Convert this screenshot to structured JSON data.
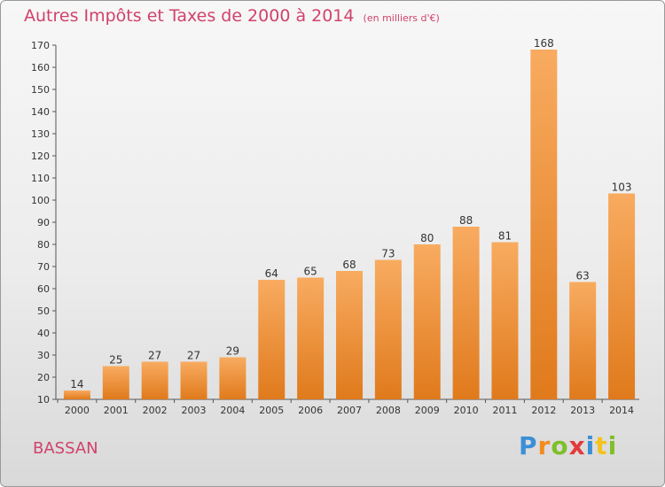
{
  "header": {
    "title": "Autres Impôts et Taxes de 2000 à 2014",
    "unit": "(en milliers d'€)"
  },
  "footer": {
    "commune": "BASSAN",
    "logo": "Proxiti"
  },
  "colors": {
    "title": "#d0426b",
    "bar_light": "#f7a65a",
    "bar_dark": "#e07b1f"
  },
  "chart_data": {
    "type": "bar",
    "title": "Autres Impôts et Taxes de 2000 à 2014",
    "subtitle": "(en milliers d'€)",
    "xlabel": "",
    "ylabel": "",
    "categories": [
      "2000",
      "2001",
      "2002",
      "2003",
      "2004",
      "2005",
      "2006",
      "2007",
      "2008",
      "2009",
      "2010",
      "2011",
      "2012",
      "2013",
      "2014"
    ],
    "values": [
      14,
      25,
      27,
      27,
      29,
      64,
      65,
      68,
      73,
      80,
      88,
      81,
      168,
      63,
      103
    ],
    "ylim": [
      10,
      170
    ],
    "yticks": [
      10,
      20,
      30,
      40,
      50,
      60,
      70,
      80,
      90,
      100,
      110,
      120,
      130,
      140,
      150,
      160,
      170
    ],
    "grid": false,
    "legend": "none"
  }
}
